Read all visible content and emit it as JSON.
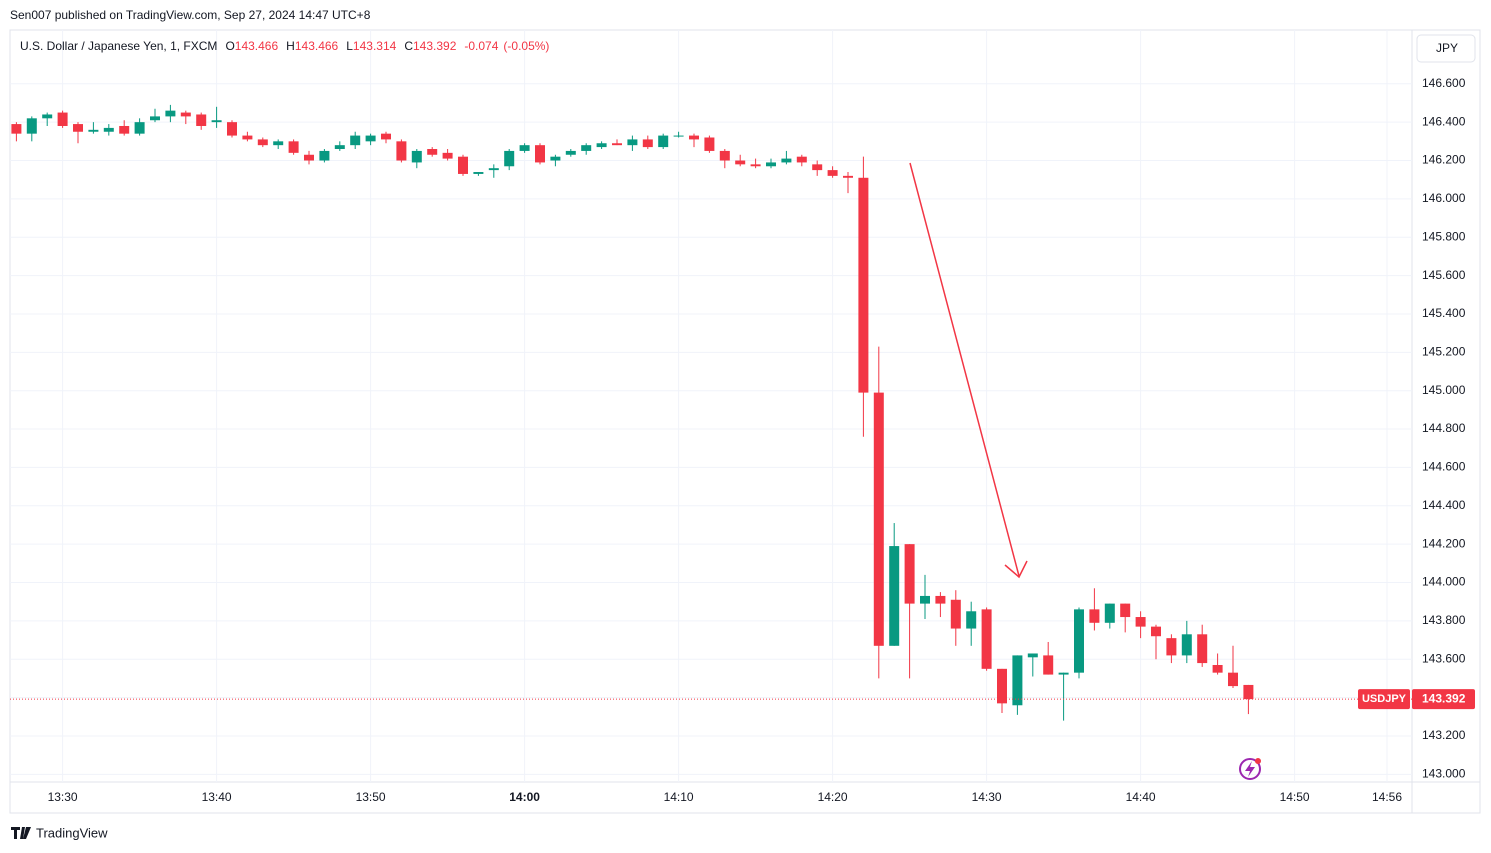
{
  "header": {
    "published": "Sen007 published on TradingView.com, Sep 27, 2024 14:47 UTC+8",
    "currency_button": "JPY",
    "footer_brand": "TradingView"
  },
  "chart_data": {
    "type": "candlestick",
    "title": "U.S. Dollar / Japanese Yen, 1, FXCM",
    "ohlc_legend": [
      {
        "label": "O",
        "value": 143.466
      },
      {
        "label": "H",
        "value": 143.466
      },
      {
        "label": "L",
        "value": 143.314
      },
      {
        "label": "C",
        "value": 143.392
      }
    ],
    "change": -0.074,
    "change_pct": "(-0.05%)",
    "up_color": "#089981",
    "down_color": "#f23645",
    "x": [
      "13:27",
      "13:28",
      "13:29",
      "13:30",
      "13:31",
      "13:32",
      "13:33",
      "13:34",
      "13:35",
      "13:36",
      "13:37",
      "13:38",
      "13:39",
      "13:40",
      "13:41",
      "13:42",
      "13:43",
      "13:44",
      "13:45",
      "13:46",
      "13:47",
      "13:48",
      "13:49",
      "13:50",
      "13:51",
      "13:52",
      "13:53",
      "13:54",
      "13:55",
      "13:56",
      "13:57",
      "13:58",
      "13:59",
      "14:00",
      "14:01",
      "14:02",
      "14:03",
      "14:04",
      "14:05",
      "14:06",
      "14:07",
      "14:08",
      "14:09",
      "14:10",
      "14:11",
      "14:12",
      "14:13",
      "14:14",
      "14:15",
      "14:16",
      "14:17",
      "14:18",
      "14:19",
      "14:20",
      "14:21",
      "14:22",
      "14:23",
      "14:24",
      "14:25",
      "14:26",
      "14:27",
      "14:28",
      "14:29",
      "14:30",
      "14:31",
      "14:32",
      "14:33",
      "14:34",
      "14:35",
      "14:36",
      "14:37",
      "14:38",
      "14:39",
      "14:40",
      "14:41",
      "14:42",
      "14:43",
      "14:44",
      "14:45",
      "14:46",
      "14:47"
    ],
    "open": [
      146.39,
      146.34,
      146.42,
      146.45,
      146.39,
      146.35,
      146.35,
      146.38,
      146.34,
      146.41,
      146.43,
      146.45,
      146.44,
      146.4,
      146.4,
      146.33,
      146.31,
      146.28,
      146.3,
      146.23,
      146.2,
      146.26,
      146.28,
      146.3,
      146.34,
      146.3,
      146.19,
      146.26,
      146.24,
      146.22,
      146.13,
      146.15,
      146.17,
      146.25,
      146.28,
      146.2,
      146.23,
      146.25,
      146.27,
      146.29,
      146.28,
      146.31,
      146.27,
      146.33,
      146.33,
      146.32,
      146.25,
      146.2,
      146.18,
      146.17,
      146.19,
      146.22,
      146.18,
      146.15,
      146.12,
      146.11,
      144.99,
      143.67,
      144.2,
      143.89,
      143.93,
      143.91,
      143.76,
      143.86,
      143.55,
      143.36,
      143.61,
      143.62,
      143.52,
      143.53,
      143.86,
      143.79,
      143.89,
      143.82,
      143.77,
      143.71,
      143.62,
      143.73,
      143.57,
      143.53,
      143.466
    ],
    "high": [
      146.4,
      146.43,
      146.45,
      146.46,
      146.4,
      146.4,
      146.39,
      146.41,
      146.42,
      146.47,
      146.49,
      146.46,
      146.45,
      146.48,
      146.41,
      146.35,
      146.32,
      146.31,
      146.31,
      146.25,
      146.26,
      146.3,
      146.35,
      146.34,
      146.35,
      146.31,
      146.26,
      146.27,
      146.26,
      146.23,
      146.14,
      146.18,
      146.26,
      146.29,
      146.29,
      146.23,
      146.26,
      146.29,
      146.3,
      146.31,
      146.33,
      146.33,
      146.34,
      146.35,
      146.34,
      146.33,
      146.26,
      146.23,
      146.21,
      146.21,
      146.25,
      146.23,
      146.2,
      146.17,
      146.14,
      146.22,
      145.23,
      144.31,
      144.2,
      144.04,
      143.95,
      143.96,
      143.9,
      143.87,
      143.55,
      143.62,
      143.63,
      143.69,
      143.53,
      143.87,
      143.97,
      143.89,
      143.89,
      143.85,
      143.78,
      143.73,
      143.8,
      143.78,
      143.63,
      143.67,
      143.466
    ],
    "low": [
      146.3,
      146.3,
      146.38,
      146.37,
      146.29,
      146.34,
      146.33,
      146.33,
      146.33,
      146.4,
      146.4,
      146.39,
      146.36,
      146.37,
      146.32,
      146.3,
      146.27,
      146.26,
      146.23,
      146.18,
      146.19,
      146.25,
      146.26,
      146.28,
      146.29,
      146.19,
      146.16,
      146.22,
      146.2,
      146.12,
      146.12,
      146.11,
      146.15,
      146.24,
      146.18,
      146.17,
      146.22,
      146.23,
      146.26,
      146.28,
      146.25,
      146.26,
      146.26,
      146.32,
      146.27,
      146.24,
      146.16,
      146.17,
      146.16,
      146.16,
      146.18,
      146.17,
      146.12,
      146.11,
      146.03,
      144.76,
      143.5,
      143.67,
      143.5,
      143.81,
      143.82,
      143.67,
      143.67,
      143.54,
      143.32,
      143.31,
      143.51,
      143.52,
      143.28,
      143.5,
      143.75,
      143.76,
      143.74,
      143.71,
      143.6,
      143.58,
      143.58,
      143.56,
      143.52,
      143.45,
      143.314
    ],
    "close": [
      146.34,
      146.42,
      146.44,
      146.38,
      146.35,
      146.36,
      146.37,
      146.34,
      146.4,
      146.43,
      146.46,
      146.43,
      146.38,
      146.41,
      146.33,
      146.31,
      146.28,
      146.3,
      146.24,
      146.2,
      146.25,
      146.28,
      146.33,
      146.33,
      146.31,
      146.2,
      146.25,
      146.23,
      146.21,
      146.13,
      146.14,
      146.16,
      146.25,
      146.28,
      146.19,
      146.22,
      146.25,
      146.28,
      146.29,
      146.28,
      146.31,
      146.27,
      146.33,
      146.33,
      146.31,
      146.25,
      146.2,
      146.18,
      146.17,
      146.19,
      146.21,
      146.19,
      146.15,
      146.12,
      146.11,
      144.99,
      143.67,
      144.19,
      143.89,
      143.93,
      143.89,
      143.76,
      143.85,
      143.55,
      143.37,
      143.62,
      143.63,
      143.52,
      143.53,
      143.86,
      143.79,
      143.89,
      143.82,
      143.77,
      143.72,
      143.62,
      143.73,
      143.58,
      143.53,
      143.46,
      143.392
    ],
    "xlim": [
      "13:26",
      "14:58"
    ],
    "xticks": [
      "13:30",
      "13:40",
      "13:50",
      "14:00",
      "14:10",
      "14:20",
      "14:30",
      "14:40",
      "14:50",
      "14:56"
    ],
    "bold_xtick": "14:00",
    "ylim": [
      142.96,
      146.87
    ],
    "yticks": [
      {
        "value": 143.0,
        "label": "143.000"
      },
      {
        "value": 143.2,
        "label": "143.200"
      },
      {
        "value": 143.4,
        "label": "143.400"
      },
      {
        "value": 143.6,
        "label": "143.600"
      },
      {
        "value": 143.8,
        "label": "143.800"
      },
      {
        "value": 144.0,
        "label": "144.000"
      },
      {
        "value": 144.2,
        "label": "144.200"
      },
      {
        "value": 144.4,
        "label": "144.400"
      },
      {
        "value": 144.6,
        "label": "144.600"
      },
      {
        "value": 144.8,
        "label": "144.800"
      },
      {
        "value": 145.0,
        "label": "145.000"
      },
      {
        "value": 145.2,
        "label": "145.200"
      },
      {
        "value": 145.4,
        "label": "145.400"
      },
      {
        "value": 145.6,
        "label": "145.600"
      },
      {
        "value": 145.8,
        "label": "145.800"
      },
      {
        "value": 146.0,
        "label": "146.000"
      },
      {
        "value": 146.2,
        "label": "146.200"
      },
      {
        "value": 146.4,
        "label": "146.400"
      },
      {
        "value": 146.6,
        "label": "146.600"
      }
    ],
    "grid": true,
    "last_price": {
      "label": "USDJPY",
      "value": 143.392
    }
  }
}
